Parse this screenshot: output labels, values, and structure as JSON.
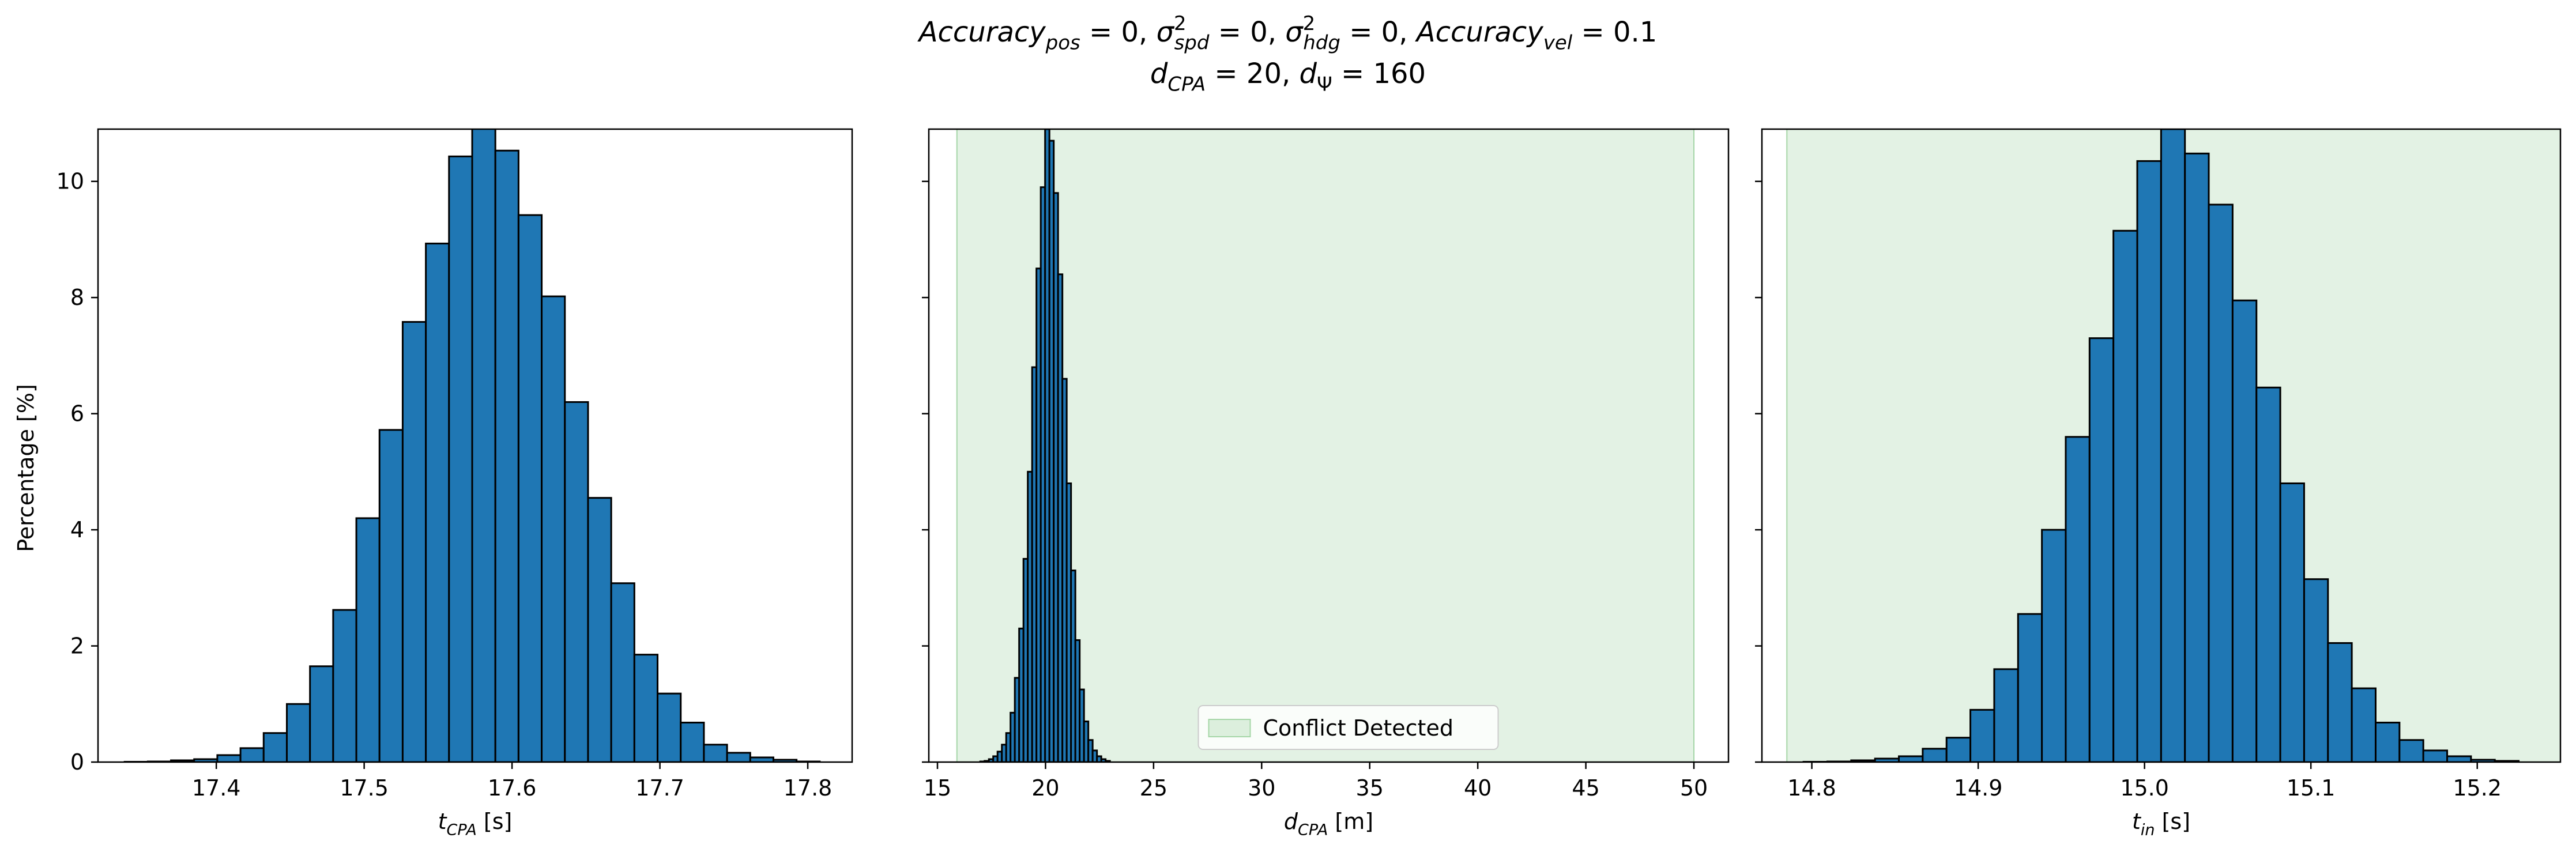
{
  "figure": {
    "title_line1_parts": [
      {
        "t": "Accuracy",
        "style": "italic"
      },
      {
        "t": "pos",
        "style": "italic-sub"
      },
      {
        "t": " = 0, ",
        "style": "normal"
      },
      {
        "t": "σ",
        "style": "italic"
      },
      {
        "t": "2",
        "style": "sup"
      },
      {
        "t": "spd",
        "style": "italic-sub"
      },
      {
        "t": " = 0, ",
        "style": "normal"
      },
      {
        "t": "σ",
        "style": "italic"
      },
      {
        "t": "2",
        "style": "sup"
      },
      {
        "t": "hdg",
        "style": "italic-sub"
      },
      {
        "t": " = 0, ",
        "style": "normal"
      },
      {
        "t": "Accuracy",
        "style": "italic"
      },
      {
        "t": "vel",
        "style": "italic-sub"
      },
      {
        "t": " = 0.1",
        "style": "normal"
      }
    ],
    "title_line2_parts": [
      {
        "t": "d",
        "style": "italic"
      },
      {
        "t": "CPA",
        "style": "italic-sub"
      },
      {
        "t": " = 20, ",
        "style": "normal"
      },
      {
        "t": "d",
        "style": "italic"
      },
      {
        "t": "Ψ",
        "style": "sub"
      },
      {
        "t": " = 160",
        "style": "normal"
      }
    ],
    "ylabel": "Percentage [%]",
    "bar_color": "#1f77b4",
    "edge_color": "#000000",
    "conflict_color": "#c8e6c9"
  },
  "chart_data": [
    {
      "type": "bar",
      "name": "tcpa-histogram",
      "xlabel_parts": [
        {
          "t": "t",
          "style": "italic"
        },
        {
          "t": "CPA",
          "style": "italic-sub"
        },
        {
          "t": " [s]",
          "style": "normal"
        }
      ],
      "xlim": [
        17.32,
        17.83
      ],
      "ylim": [
        0,
        10.9
      ],
      "xticks": [
        17.4,
        17.5,
        17.6,
        17.7,
        17.8
      ],
      "xtick_labels": [
        "17.4",
        "17.5",
        "17.6",
        "17.7",
        "17.8"
      ],
      "yticks": [
        0,
        2,
        4,
        6,
        8,
        10
      ],
      "ytick_labels": [
        "0",
        "2",
        "4",
        "6",
        "8",
        "10"
      ],
      "bin_start": 17.338,
      "bin_width": 0.01567,
      "values": [
        0.005,
        0.01,
        0.03,
        0.05,
        0.12,
        0.24,
        0.5,
        1.0,
        1.65,
        2.62,
        4.2,
        5.72,
        7.58,
        8.93,
        10.43,
        11.05,
        10.53,
        9.42,
        8.02,
        6.2,
        4.55,
        3.08,
        1.85,
        1.18,
        0.68,
        0.3,
        0.16,
        0.08,
        0.04,
        0.01
      ],
      "shaded_region": null,
      "legend": null
    },
    {
      "type": "bar",
      "name": "dcpa-histogram",
      "xlabel_parts": [
        {
          "t": "d",
          "style": "italic"
        },
        {
          "t": "CPA",
          "style": "italic-sub"
        },
        {
          "t": " [m]",
          "style": "normal"
        }
      ],
      "xlim": [
        14.6,
        51.6
      ],
      "ylim": [
        0,
        10.9
      ],
      "xticks": [
        15,
        20,
        25,
        30,
        35,
        40,
        45,
        50
      ],
      "xtick_labels": [
        "15",
        "20",
        "25",
        "30",
        "35",
        "40",
        "45",
        "50"
      ],
      "yticks": [
        0,
        2,
        4,
        6,
        8,
        10
      ],
      "ytick_labels": [
        "",
        "",
        "",
        "",
        "",
        ""
      ],
      "bin_start": 16.98,
      "bin_width": 0.2,
      "values": [
        0.01,
        0.02,
        0.05,
        0.1,
        0.18,
        0.3,
        0.5,
        0.85,
        1.45,
        2.3,
        3.5,
        5.0,
        6.8,
        8.5,
        9.9,
        10.9,
        10.7,
        9.8,
        8.4,
        6.6,
        4.8,
        3.3,
        2.1,
        1.25,
        0.7,
        0.38,
        0.2,
        0.1,
        0.05,
        0.02
      ],
      "shaded_region": [
        15.9,
        50.0
      ],
      "legend": {
        "label": "Conflict Detected",
        "placement": "lower-center"
      }
    },
    {
      "type": "bar",
      "name": "tin-histogram",
      "xlabel_parts": [
        {
          "t": "t",
          "style": "italic"
        },
        {
          "t": "in",
          "style": "italic-sub"
        },
        {
          "t": " [s]",
          "style": "normal"
        }
      ],
      "xlim": [
        14.77,
        15.25
      ],
      "ylim": [
        0,
        10.9
      ],
      "xticks": [
        14.8,
        14.9,
        15.0,
        15.1,
        15.2
      ],
      "xtick_labels": [
        "14.8",
        "14.9",
        "15.0",
        "15.1",
        "15.2"
      ],
      "yticks": [
        0,
        2,
        4,
        6,
        8,
        10
      ],
      "ytick_labels": [
        "",
        "",
        "",
        "",
        "",
        ""
      ],
      "bin_start": 14.795,
      "bin_width": 0.01433,
      "values": [
        0.005,
        0.01,
        0.03,
        0.06,
        0.1,
        0.23,
        0.42,
        0.9,
        1.6,
        2.55,
        4.0,
        5.6,
        7.3,
        9.15,
        10.35,
        10.9,
        10.48,
        9.6,
        7.95,
        6.45,
        4.8,
        3.15,
        2.05,
        1.27,
        0.68,
        0.38,
        0.2,
        0.1,
        0.04,
        0.02
      ],
      "shaded_region": [
        14.785,
        15.25
      ],
      "legend": null
    }
  ]
}
